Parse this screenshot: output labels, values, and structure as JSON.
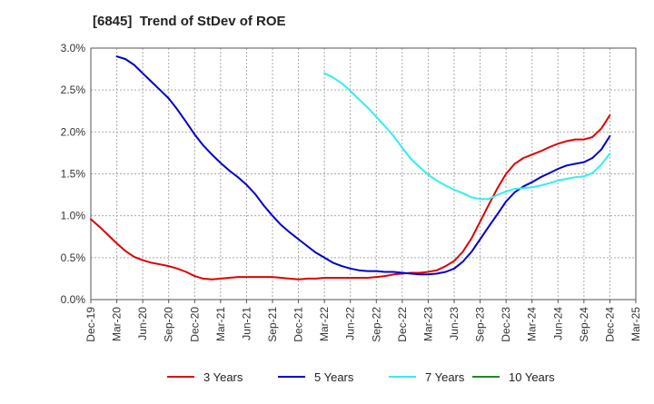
{
  "chart_data": {
    "type": "line",
    "title": "[6845]  Trend of StDev of ROE",
    "xlabel": "",
    "ylabel": "",
    "categories": [
      "Dec-19",
      "Mar-20",
      "Jun-20",
      "Sep-20",
      "Dec-20",
      "Mar-21",
      "Jun-21",
      "Sep-21",
      "Dec-21",
      "Mar-22",
      "Jun-22",
      "Sep-22",
      "Dec-22",
      "Mar-23",
      "Jun-23",
      "Sep-23",
      "Dec-23",
      "Mar-24",
      "Jun-24",
      "Sep-24",
      "Dec-24",
      "Mar-25"
    ],
    "ylim": [
      0,
      3.0
    ],
    "y_ticks": [
      "0.0%",
      "0.5%",
      "1.0%",
      "1.5%",
      "2.0%",
      "2.5%",
      "3.0%"
    ],
    "grid": true,
    "legend_position": "bottom",
    "series": [
      {
        "name": "3 Years",
        "color": "#e00000",
        "points": [
          [
            0,
            0.96
          ],
          [
            0.33,
            0.87
          ],
          [
            0.67,
            0.77
          ],
          [
            1,
            0.67
          ],
          [
            1.33,
            0.58
          ],
          [
            1.67,
            0.51
          ],
          [
            2,
            0.47
          ],
          [
            2.33,
            0.44
          ],
          [
            2.67,
            0.42
          ],
          [
            3,
            0.4
          ],
          [
            3.33,
            0.37
          ],
          [
            3.67,
            0.33
          ],
          [
            4,
            0.28
          ],
          [
            4.33,
            0.25
          ],
          [
            4.67,
            0.24
          ],
          [
            5,
            0.25
          ],
          [
            5.33,
            0.26
          ],
          [
            5.67,
            0.27
          ],
          [
            6,
            0.27
          ],
          [
            6.33,
            0.27
          ],
          [
            6.67,
            0.27
          ],
          [
            7,
            0.27
          ],
          [
            7.33,
            0.26
          ],
          [
            7.67,
            0.25
          ],
          [
            8,
            0.24
          ],
          [
            8.33,
            0.25
          ],
          [
            8.67,
            0.25
          ],
          [
            9,
            0.26
          ],
          [
            9.33,
            0.26
          ],
          [
            9.67,
            0.26
          ],
          [
            10,
            0.26
          ],
          [
            10.33,
            0.26
          ],
          [
            10.67,
            0.26
          ],
          [
            11,
            0.27
          ],
          [
            11.33,
            0.28
          ],
          [
            11.67,
            0.3
          ],
          [
            12,
            0.31
          ],
          [
            12.33,
            0.32
          ],
          [
            12.67,
            0.32
          ],
          [
            13,
            0.33
          ],
          [
            13.33,
            0.35
          ],
          [
            13.67,
            0.4
          ],
          [
            14,
            0.46
          ],
          [
            14.33,
            0.57
          ],
          [
            14.67,
            0.73
          ],
          [
            15,
            0.93
          ],
          [
            15.33,
            1.13
          ],
          [
            15.67,
            1.33
          ],
          [
            16,
            1.5
          ],
          [
            16.33,
            1.62
          ],
          [
            16.67,
            1.69
          ],
          [
            17,
            1.73
          ],
          [
            17.33,
            1.77
          ],
          [
            17.67,
            1.82
          ],
          [
            18,
            1.86
          ],
          [
            18.33,
            1.89
          ],
          [
            18.67,
            1.91
          ],
          [
            19,
            1.91
          ],
          [
            19.33,
            1.94
          ],
          [
            19.67,
            2.04
          ],
          [
            20,
            2.2
          ]
        ]
      },
      {
        "name": "5 Years",
        "color": "#0000cc",
        "points": [
          [
            1,
            2.9
          ],
          [
            1.33,
            2.87
          ],
          [
            1.67,
            2.8
          ],
          [
            2,
            2.7
          ],
          [
            2.33,
            2.6
          ],
          [
            2.67,
            2.5
          ],
          [
            3,
            2.4
          ],
          [
            3.33,
            2.27
          ],
          [
            3.67,
            2.12
          ],
          [
            4,
            1.97
          ],
          [
            4.33,
            1.84
          ],
          [
            4.67,
            1.73
          ],
          [
            5,
            1.63
          ],
          [
            5.33,
            1.54
          ],
          [
            5.67,
            1.46
          ],
          [
            6,
            1.37
          ],
          [
            6.33,
            1.26
          ],
          [
            6.67,
            1.12
          ],
          [
            7,
            1.0
          ],
          [
            7.33,
            0.89
          ],
          [
            7.67,
            0.8
          ],
          [
            8,
            0.72
          ],
          [
            8.33,
            0.64
          ],
          [
            8.67,
            0.56
          ],
          [
            9,
            0.5
          ],
          [
            9.33,
            0.44
          ],
          [
            9.67,
            0.4
          ],
          [
            10,
            0.37
          ],
          [
            10.33,
            0.35
          ],
          [
            10.67,
            0.34
          ],
          [
            11,
            0.34
          ],
          [
            11.33,
            0.33
          ],
          [
            11.67,
            0.33
          ],
          [
            12,
            0.32
          ],
          [
            12.33,
            0.31
          ],
          [
            12.67,
            0.3
          ],
          [
            13,
            0.3
          ],
          [
            13.33,
            0.31
          ],
          [
            13.67,
            0.33
          ],
          [
            14,
            0.37
          ],
          [
            14.33,
            0.45
          ],
          [
            14.67,
            0.57
          ],
          [
            15,
            0.72
          ],
          [
            15.33,
            0.87
          ],
          [
            15.67,
            1.02
          ],
          [
            16,
            1.17
          ],
          [
            16.33,
            1.28
          ],
          [
            16.67,
            1.35
          ],
          [
            17,
            1.4
          ],
          [
            17.33,
            1.46
          ],
          [
            17.67,
            1.51
          ],
          [
            18,
            1.56
          ],
          [
            18.33,
            1.6
          ],
          [
            18.67,
            1.62
          ],
          [
            19,
            1.64
          ],
          [
            19.33,
            1.69
          ],
          [
            19.67,
            1.79
          ],
          [
            20,
            1.95
          ]
        ]
      },
      {
        "name": "7 Years",
        "color": "#33eeee",
        "points": [
          [
            9,
            2.7
          ],
          [
            9.33,
            2.65
          ],
          [
            9.67,
            2.58
          ],
          [
            10,
            2.49
          ],
          [
            10.33,
            2.39
          ],
          [
            10.67,
            2.29
          ],
          [
            11,
            2.18
          ],
          [
            11.33,
            2.07
          ],
          [
            11.67,
            1.95
          ],
          [
            12,
            1.81
          ],
          [
            12.33,
            1.68
          ],
          [
            12.67,
            1.58
          ],
          [
            13,
            1.49
          ],
          [
            13.33,
            1.42
          ],
          [
            13.67,
            1.36
          ],
          [
            14,
            1.31
          ],
          [
            14.33,
            1.27
          ],
          [
            14.67,
            1.22
          ],
          [
            15,
            1.2
          ],
          [
            15.33,
            1.2
          ],
          [
            15.67,
            1.25
          ],
          [
            16,
            1.29
          ],
          [
            16.33,
            1.32
          ],
          [
            16.67,
            1.33
          ],
          [
            17,
            1.34
          ],
          [
            17.33,
            1.36
          ],
          [
            17.67,
            1.39
          ],
          [
            18,
            1.42
          ],
          [
            18.33,
            1.44
          ],
          [
            18.67,
            1.46
          ],
          [
            19,
            1.47
          ],
          [
            19.33,
            1.51
          ],
          [
            19.67,
            1.61
          ],
          [
            20,
            1.74
          ]
        ]
      },
      {
        "name": "10 Years",
        "color": "#228822",
        "points": []
      }
    ]
  }
}
